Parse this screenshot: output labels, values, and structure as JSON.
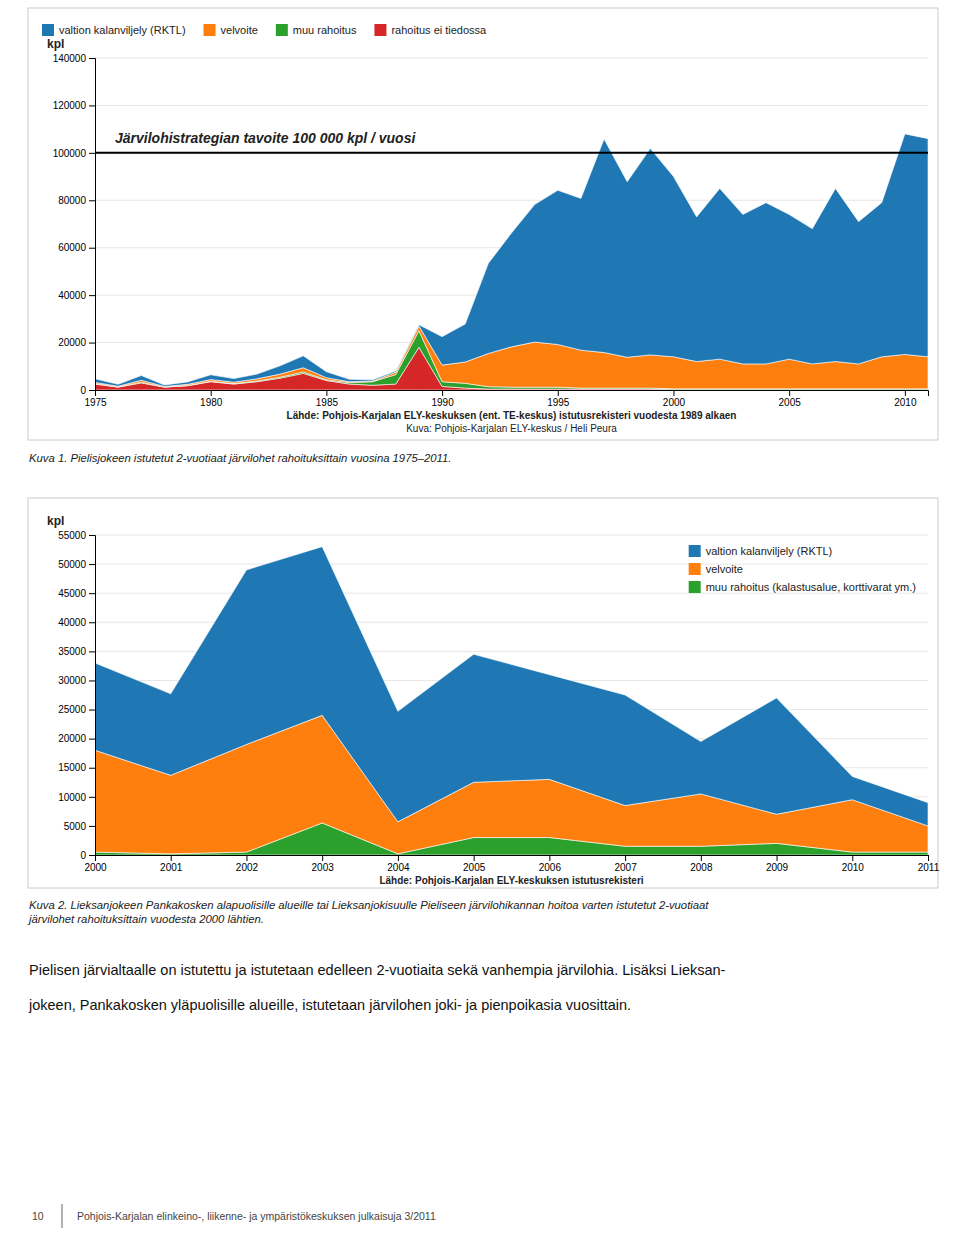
{
  "chart_data": [
    {
      "type": "area",
      "stacked": true,
      "grid": true,
      "legend": "top",
      "y_label": "kpl",
      "x": [
        1975,
        1976,
        1977,
        1978,
        1979,
        1980,
        1981,
        1982,
        1983,
        1984,
        1985,
        1986,
        1987,
        1988,
        1989,
        1990,
        1991,
        1992,
        1993,
        1994,
        1995,
        1996,
        1997,
        1998,
        1999,
        2000,
        2001,
        2002,
        2003,
        2004,
        2005,
        2006,
        2007,
        2008,
        2009,
        2010,
        2011
      ],
      "xlim": [
        1975,
        2011
      ],
      "xticks": [
        1975,
        1980,
        1985,
        1990,
        1995,
        2000,
        2005,
        2010
      ],
      "ylim": [
        0,
        140000
      ],
      "yticks": [
        0,
        20000,
        40000,
        60000,
        80000,
        100000,
        120000,
        140000
      ],
      "series": [
        {
          "name": "valtion kalanviljely (RKTL)",
          "values": [
            1500,
            800,
            2000,
            600,
            1000,
            2000,
            1500,
            2000,
            3500,
            5000,
            2500,
            1000,
            500,
            500,
            500,
            12000,
            16000,
            38000,
            48000,
            58000,
            65000,
            64000,
            90000,
            74000,
            87000,
            76000,
            61000,
            72000,
            63000,
            68000,
            61000,
            57000,
            73000,
            60000,
            65000,
            93000,
            92000
          ]
        },
        {
          "name": "velvoite",
          "values": [
            500,
            300,
            800,
            200,
            500,
            700,
            600,
            900,
            1300,
            1800,
            900,
            400,
            300,
            1000,
            2000,
            7000,
            9000,
            14000,
            17000,
            19000,
            18000,
            16000,
            15000,
            13000,
            14000,
            13500,
            11500,
            12500,
            10500,
            10500,
            12500,
            10500,
            11500,
            10500,
            13500,
            14500,
            13500
          ]
        },
        {
          "name": "muu rahoitus",
          "values": [
            200,
            100,
            300,
            100,
            100,
            200,
            200,
            300,
            400,
            600,
            300,
            600,
            1500,
            4000,
            7000,
            2000,
            2000,
            1000,
            800,
            800,
            800,
            400,
            400,
            400,
            400,
            400,
            400,
            400,
            400,
            400,
            400,
            400,
            400,
            400,
            400,
            400,
            400
          ]
        },
        {
          "name": "rahoitus ei tiedossa",
          "values": [
            2500,
            1200,
            3000,
            1200,
            1800,
            3500,
            2500,
            3500,
            5000,
            7000,
            4000,
            2500,
            2000,
            2500,
            18000,
            1500,
            800,
            400,
            400,
            400,
            400,
            400,
            400,
            400,
            400,
            100,
            100,
            100,
            100,
            100,
            100,
            100,
            100,
            100,
            100,
            100,
            100
          ]
        }
      ],
      "reference_line": {
        "value": 100000,
        "label": "Järvilohistrategian tavoite 100 000 kpl / vuosi"
      },
      "source": [
        "Lähde: Pohjois-Karjalan ELY-keskuksen (ent. TE-keskus) istutusrekisteri vuodesta 1989 alkaen",
        "Kuva: Pohjois-Karjalan ELY-keskus / Heli Peura"
      ],
      "caption": [
        "Kuva 1. Pielisjokeen istutetut 2-vuotiaat järvilohet rahoituksittain vuosina 1975–2011."
      ]
    },
    {
      "type": "area",
      "stacked": true,
      "grid": true,
      "legend": "upper right",
      "y_label": "kpl",
      "x": [
        2000,
        2001,
        2002,
        2003,
        2004,
        2005,
        2006,
        2007,
        2008,
        2009,
        2010,
        2011
      ],
      "xlim": [
        2000,
        2011
      ],
      "xticks": [
        2000,
        2001,
        2002,
        2003,
        2004,
        2005,
        2006,
        2007,
        2008,
        2009,
        2010,
        2011
      ],
      "ylim": [
        0,
        55000
      ],
      "yticks": [
        0,
        5000,
        10000,
        15000,
        20000,
        25000,
        30000,
        35000,
        40000,
        45000,
        50000,
        55000
      ],
      "series": [
        {
          "name": "valtion kalanviljely (RKTL)",
          "values": [
            15000,
            14000,
            30000,
            29000,
            19000,
            22000,
            18000,
            19000,
            9000,
            20000,
            4000,
            4000
          ]
        },
        {
          "name": "velvoite",
          "values": [
            17500,
            13500,
            18500,
            18500,
            5500,
            9500,
            10000,
            7000,
            9000,
            5000,
            9000,
            4500
          ]
        },
        {
          "name": "muu rahoitus (kalastusalue, korttivarat ym.)",
          "values": [
            500,
            200,
            500,
            5500,
            200,
            3000,
            3000,
            1500,
            1500,
            2000,
            500,
            500
          ]
        }
      ],
      "source": [
        "Lähde: Pohjois-Karjalan ELY-keskuksen istutusrekisteri"
      ],
      "caption": [
        "Kuva 2. Lieksanjokeen Pankakosken alapuolisille alueille tai Lieksanjokisuulle Pieliseen järvilohikannan hoitoa varten istutetut 2-vuotiaat",
        "järvilohet rahoituksittain vuodesta 2000 lähtien."
      ]
    }
  ],
  "body_text": [
    "Pielisen järvialtaalle on istutettu ja istutetaan edelleen 2-vuotiaita sekä vanhempia järvilohia. Lisäksi Lieksan-",
    "jokeen, Pankakosken yläpuolisille alueille, istutetaan järvilohen joki- ja pienpoikasia vuosittain."
  ],
  "footer": {
    "page": "10",
    "text": "Pohjois-Karjalan elinkeino-, liikenne- ja ympäristökeskuksen julkaisuja 3/2011"
  }
}
